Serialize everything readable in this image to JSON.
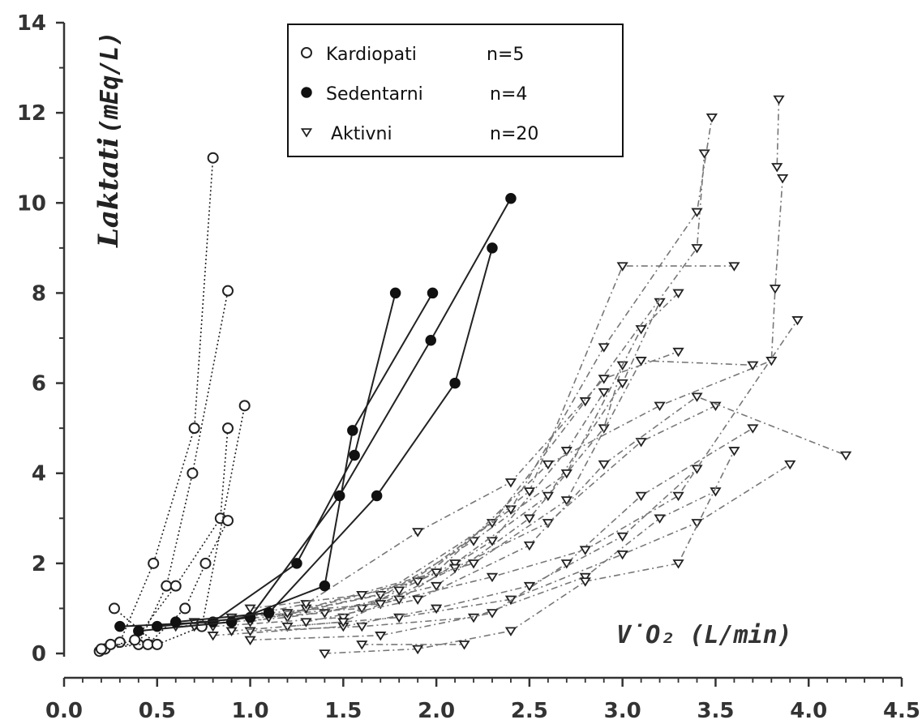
{
  "chart_data": {
    "type": "scatter",
    "xlabel": "V̇O₂  (L/min)",
    "ylabel": "Laktati",
    "ylabel_unit": "(mEq/L)",
    "xlim": [
      0.0,
      4.5
    ],
    "ylim": [
      0,
      14
    ],
    "x_ticks": [
      "0.0",
      "0.5",
      "1.0",
      "1.5",
      "2.0",
      "2.5",
      "3.0",
      "3.5",
      "4.0",
      "4.5"
    ],
    "y_ticks": [
      "0",
      "2",
      "4",
      "6",
      "8",
      "10",
      "12",
      "14"
    ],
    "grid": false,
    "legend_position": "top-center",
    "legend": [
      {
        "name": "Kardiopati",
        "n": "n=5",
        "marker": "open-circle"
      },
      {
        "name": "Sedentarni",
        "n": "n=4",
        "marker": "filled-circle"
      },
      {
        "name": "Aktivni",
        "n": "n=20",
        "marker": "open-triangle-down"
      }
    ],
    "series": [
      {
        "name": "Kardiopati",
        "marker": "open-circle",
        "line": "dotted",
        "subjects": [
          [
            [
              0.19,
              0.05
            ],
            [
              0.3,
              0.25
            ],
            [
              0.48,
              2.0
            ],
            [
              0.7,
              5.0
            ],
            [
              0.8,
              11.0
            ]
          ],
          [
            [
              0.22,
              0.1
            ],
            [
              0.4,
              0.2
            ],
            [
              0.55,
              1.5
            ],
            [
              0.69,
              4.0
            ],
            [
              0.88,
              8.05
            ]
          ],
          [
            [
              0.2,
              0.1
            ],
            [
              0.38,
              0.3
            ],
            [
              0.6,
              1.5
            ],
            [
              0.84,
              3.0
            ],
            [
              0.88,
              5.0
            ]
          ],
          [
            [
              0.25,
              0.2
            ],
            [
              0.45,
              0.2
            ],
            [
              0.65,
              1.0
            ],
            [
              0.76,
              2.0
            ],
            [
              0.88,
              2.95
            ]
          ],
          [
            [
              0.27,
              1.0
            ],
            [
              0.5,
              0.2
            ],
            [
              0.74,
              0.6
            ],
            [
              0.97,
              5.5
            ]
          ]
        ]
      },
      {
        "name": "Sedentarni",
        "marker": "filled-circle",
        "line": "solid",
        "subjects": [
          [
            [
              0.3,
              0.6
            ],
            [
              0.8,
              0.7
            ],
            [
              1.25,
              2.0
            ],
            [
              1.56,
              4.4
            ],
            [
              1.78,
              8.0
            ]
          ],
          [
            [
              0.4,
              0.5
            ],
            [
              0.9,
              0.7
            ],
            [
              1.4,
              1.5
            ],
            [
              1.55,
              4.95
            ],
            [
              1.98,
              8.0
            ]
          ],
          [
            [
              0.5,
              0.6
            ],
            [
              1.0,
              0.8
            ],
            [
              1.48,
              3.5
            ],
            [
              1.97,
              6.95
            ],
            [
              2.4,
              10.1
            ]
          ],
          [
            [
              0.6,
              0.7
            ],
            [
              1.1,
              0.9
            ],
            [
              1.68,
              3.5
            ],
            [
              2.1,
              6.0
            ],
            [
              2.3,
              9.0
            ]
          ]
        ]
      },
      {
        "name": "Aktivni",
        "marker": "open-triangle-down",
        "line": "dash-dot",
        "subjects": [
          [
            [
              0.6,
              0.6
            ],
            [
              1.2,
              0.8
            ],
            [
              1.8,
              1.2
            ],
            [
              2.3,
              2.5
            ],
            [
              2.7,
              4.5
            ],
            [
              2.9,
              5.8
            ]
          ],
          [
            [
              0.7,
              0.7
            ],
            [
              1.4,
              0.9
            ],
            [
              2.0,
              1.5
            ],
            [
              2.5,
              3.0
            ],
            [
              2.9,
              5.0
            ],
            [
              3.0,
              6.4
            ]
          ],
          [
            [
              0.8,
              0.6
            ],
            [
              1.5,
              0.8
            ],
            [
              2.1,
              2.0
            ],
            [
              2.6,
              3.5
            ],
            [
              3.0,
              6.0
            ],
            [
              3.2,
              7.8
            ]
          ],
          [
            [
              0.9,
              0.8
            ],
            [
              1.6,
              1.0
            ],
            [
              2.2,
              2.5
            ],
            [
              2.7,
              4.0
            ],
            [
              3.1,
              7.2
            ],
            [
              3.3,
              8.0
            ]
          ],
          [
            [
              1.0,
              0.7
            ],
            [
              1.7,
              1.3
            ],
            [
              2.3,
              2.9
            ],
            [
              2.8,
              5.6
            ],
            [
              3.4,
              9.0
            ],
            [
              3.44,
              11.1
            ]
          ],
          [
            [
              1.1,
              0.8
            ],
            [
              1.8,
              1.4
            ],
            [
              2.4,
              3.2
            ],
            [
              2.9,
              6.8
            ],
            [
              3.4,
              9.8
            ],
            [
              3.48,
              11.9
            ]
          ],
          [
            [
              1.2,
              0.9
            ],
            [
              1.9,
              1.6
            ],
            [
              2.5,
              3.6
            ],
            [
              3.0,
              8.6
            ],
            [
              3.6,
              8.6
            ]
          ],
          [
            [
              1.3,
              1.0
            ],
            [
              2.0,
              1.8
            ],
            [
              2.6,
              4.2
            ],
            [
              3.2,
              5.5
            ],
            [
              3.8,
              6.5
            ],
            [
              3.82,
              8.1
            ],
            [
              3.86,
              10.55
            ]
          ],
          [
            [
              3.84,
              12.3
            ],
            [
              3.83,
              10.8
            ]
          ],
          [
            [
              1.0,
              0.5
            ],
            [
              1.6,
              0.6
            ],
            [
              2.2,
              0.8
            ],
            [
              2.8,
              1.7
            ],
            [
              3.2,
              3.0
            ],
            [
              3.5,
              3.6
            ]
          ],
          [
            [
              1.2,
              0.6
            ],
            [
              1.8,
              0.8
            ],
            [
              2.4,
              1.2
            ],
            [
              3.0,
              2.2
            ],
            [
              3.4,
              2.9
            ],
            [
              3.9,
              4.2
            ]
          ],
          [
            [
              1.4,
              0.0
            ],
            [
              1.9,
              0.1
            ],
            [
              2.4,
              0.5
            ],
            [
              2.8,
              1.6
            ],
            [
              3.3,
              2.0
            ],
            [
              3.6,
              4.5
            ]
          ],
          [
            [
              1.0,
              0.3
            ],
            [
              1.7,
              0.4
            ],
            [
              2.3,
              0.9
            ],
            [
              2.7,
              2.0
            ],
            [
              3.1,
              3.5
            ],
            [
              3.7,
              5.0
            ]
          ],
          [
            [
              1.6,
              0.2
            ],
            [
              2.15,
              0.2
            ]
          ],
          [
            [
              0.8,
              0.4
            ],
            [
              1.5,
              0.6
            ],
            [
              2.0,
              1.0
            ],
            [
              2.5,
              1.5
            ],
            [
              3.0,
              2.6
            ],
            [
              3.4,
              4.1
            ]
          ],
          [
            [
              0.9,
              0.5
            ],
            [
              1.5,
              0.7
            ],
            [
              2.1,
              1.9
            ],
            [
              2.6,
              2.9
            ],
            [
              3.1,
              4.7
            ],
            [
              3.5,
              5.5
            ]
          ],
          [
            [
              0.7,
              0.6
            ],
            [
              1.3,
              1.1
            ],
            [
              1.9,
              2.7
            ],
            [
              2.4,
              3.8
            ],
            [
              2.9,
              6.1
            ],
            [
              3.3,
              6.7
            ]
          ],
          [
            [
              1.0,
              1.0
            ],
            [
              1.6,
              1.3
            ],
            [
              2.2,
              2.0
            ],
            [
              2.7,
              3.4
            ],
            [
              3.1,
              6.5
            ],
            [
              3.7,
              6.4
            ]
          ],
          [
            [
              1.1,
              0.9
            ],
            [
              1.7,
              1.1
            ],
            [
              2.3,
              1.7
            ],
            [
              2.8,
              2.3
            ],
            [
              3.3,
              3.5
            ],
            [
              3.94,
              7.4
            ]
          ],
          [
            [
              1.3,
              0.7
            ],
            [
              1.9,
              1.2
            ],
            [
              2.5,
              2.4
            ],
            [
              2.9,
              4.2
            ],
            [
              3.4,
              5.7
            ],
            [
              4.2,
              4.4
            ]
          ]
        ]
      }
    ]
  }
}
